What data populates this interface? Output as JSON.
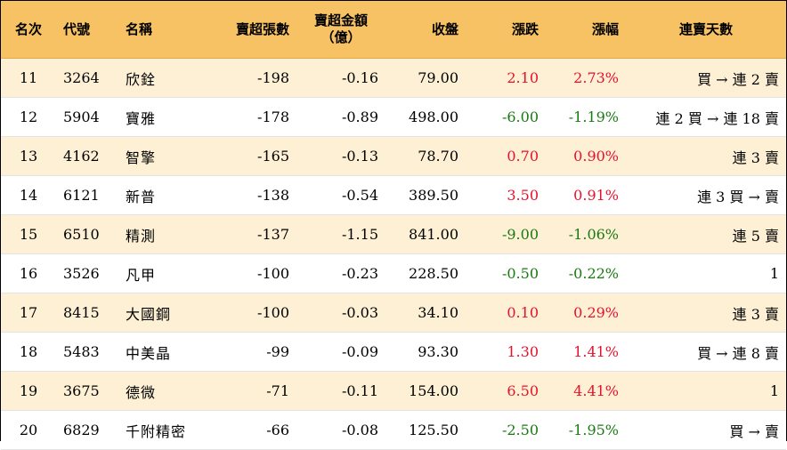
{
  "headers": {
    "rank": "名次",
    "code": "代號",
    "name": "名稱",
    "sell_lots": "賣超張數",
    "sell_amount_line1": "賣超金額",
    "sell_amount_line2": "（億）",
    "close": "收盤",
    "change": "漲跌",
    "pct": "漲幅",
    "streak": "連賣天數"
  },
  "colors": {
    "header_bg": "#f6c264",
    "odd_row_bg": "#fdf0d5",
    "up": "#e8112d",
    "down": "#1a7a12"
  },
  "rows": [
    {
      "rank": "11",
      "code": "3264",
      "name": "欣銓",
      "lots": "-198",
      "amount": "-0.16",
      "close": "79.00",
      "change": "2.10",
      "pct": "2.73%",
      "dir": "up",
      "streak": "買 → 連 2 賣"
    },
    {
      "rank": "12",
      "code": "5904",
      "name": "寶雅",
      "lots": "-178",
      "amount": "-0.89",
      "close": "498.00",
      "change": "-6.00",
      "pct": "-1.19%",
      "dir": "down",
      "streak": "連 2 買 → 連 18 賣"
    },
    {
      "rank": "13",
      "code": "4162",
      "name": "智擎",
      "lots": "-165",
      "amount": "-0.13",
      "close": "78.70",
      "change": "0.70",
      "pct": "0.90%",
      "dir": "up",
      "streak": "連 3 賣"
    },
    {
      "rank": "14",
      "code": "6121",
      "name": "新普",
      "lots": "-138",
      "amount": "-0.54",
      "close": "389.50",
      "change": "3.50",
      "pct": "0.91%",
      "dir": "up",
      "streak": "連 3 買 → 賣"
    },
    {
      "rank": "15",
      "code": "6510",
      "name": "精測",
      "lots": "-137",
      "amount": "-1.15",
      "close": "841.00",
      "change": "-9.00",
      "pct": "-1.06%",
      "dir": "down",
      "streak": "連 5 賣"
    },
    {
      "rank": "16",
      "code": "3526",
      "name": "凡甲",
      "lots": "-100",
      "amount": "-0.23",
      "close": "228.50",
      "change": "-0.50",
      "pct": "-0.22%",
      "dir": "down",
      "streak": "1"
    },
    {
      "rank": "17",
      "code": "8415",
      "name": "大國鋼",
      "lots": "-100",
      "amount": "-0.03",
      "close": "34.10",
      "change": "0.10",
      "pct": "0.29%",
      "dir": "up",
      "streak": "連 3 賣"
    },
    {
      "rank": "18",
      "code": "5483",
      "name": "中美晶",
      "lots": "-99",
      "amount": "-0.09",
      "close": "93.30",
      "change": "1.30",
      "pct": "1.41%",
      "dir": "up",
      "streak": "買 → 連 8 賣"
    },
    {
      "rank": "19",
      "code": "3675",
      "name": "德微",
      "lots": "-71",
      "amount": "-0.11",
      "close": "154.00",
      "change": "6.50",
      "pct": "4.41%",
      "dir": "up",
      "streak": "1"
    },
    {
      "rank": "20",
      "code": "6829",
      "name": "千附精密",
      "lots": "-66",
      "amount": "-0.08",
      "close": "125.50",
      "change": "-2.50",
      "pct": "-1.95%",
      "dir": "down",
      "streak": "買 → 賣"
    }
  ]
}
